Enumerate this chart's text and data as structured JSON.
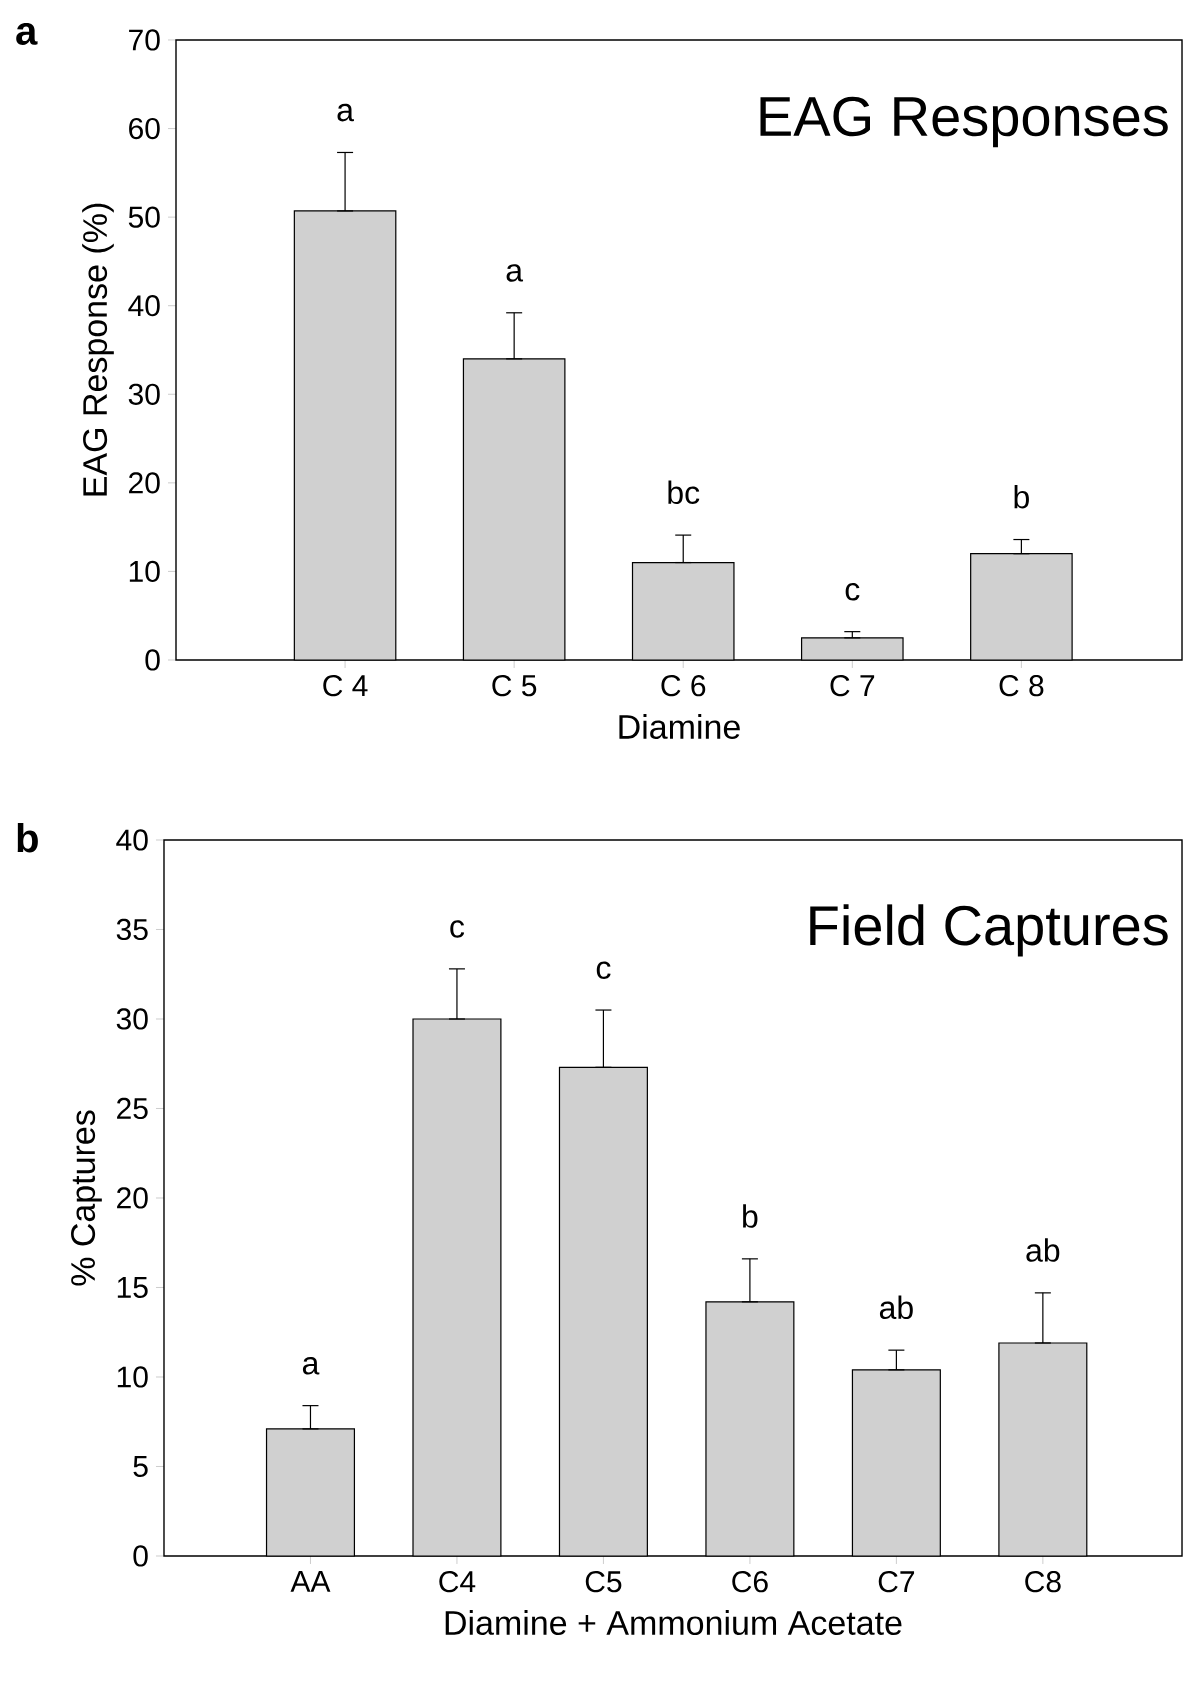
{
  "chart_data": [
    {
      "type": "bar",
      "title": "EAG Responses",
      "xlabel": "Diamine",
      "ylabel": "EAG  Response  (%)",
      "categories": [
        "C 4",
        "C 5",
        "C 6",
        "C 7",
        "C 8"
      ],
      "values": [
        50.7,
        34.0,
        11.0,
        2.5,
        12.0
      ],
      "color": "#d0d0d0",
      "errors": [
        [
          50.7,
          57.3
        ],
        [
          34.0,
          39.2
        ],
        [
          11.0,
          14.1
        ],
        [
          2.5,
          3.2
        ],
        [
          12.0,
          13.6
        ]
      ],
      "ylim": [
        0,
        70
      ],
      "yticks": [
        0,
        10,
        20,
        30,
        40,
        50,
        60,
        70
      ],
      "annotations": [
        "a",
        "a",
        "a",
        "bc",
        "c",
        "b"
      ]
    },
    {
      "type": "bar",
      "title": "Field Captures",
      "xlabel": "Diamine + Ammonium Acetate",
      "ylabel": "% Captures",
      "categories": [
        "AA",
        "C4",
        "C5",
        "C6",
        "C7",
        "C8"
      ],
      "values": [
        7.1,
        30.0,
        27.3,
        14.2,
        10.4,
        11.9
      ],
      "color": "#d0d0d0",
      "errors": [
        [
          7.1,
          8.4
        ],
        [
          30.0,
          32.8
        ],
        [
          27.3,
          30.5
        ],
        [
          14.2,
          16.6
        ],
        [
          10.4,
          11.5
        ],
        [
          11.9,
          14.7
        ]
      ],
      "ylim": [
        0,
        40
      ],
      "yticks": [
        0,
        5,
        10,
        15,
        20,
        25,
        30,
        35,
        40
      ],
      "annotations": [
        "b",
        "a",
        "c",
        "c",
        "b",
        "ab",
        "ab"
      ]
    }
  ]
}
